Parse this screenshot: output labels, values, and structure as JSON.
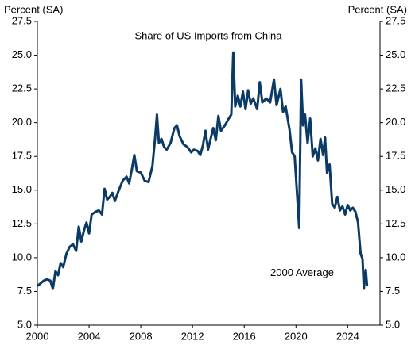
{
  "chart_data": {
    "type": "line",
    "title": "Share of US Imports from China",
    "ylabel": "Percent (SA)",
    "y2label": "Percent (SA)",
    "xlim": [
      2000,
      2026.5
    ],
    "xticks": [
      2000,
      2004,
      2008,
      2012,
      2016,
      2020,
      2024
    ],
    "ylim": [
      5,
      27.5
    ],
    "yticks": [
      {
        "value": 5,
        "label": "5.0"
      },
      7.5,
      {
        "value": 10,
        "label": "10.0"
      },
      12.5,
      {
        "value": 15,
        "label": "15.0"
      },
      17.5,
      {
        "value": 20,
        "label": "20.0"
      },
      22.5,
      {
        "value": 25,
        "label": "25.0"
      },
      27.5
    ],
    "y2lim": [
      5,
      27.5
    ],
    "y2ticks": [
      {
        "value": 5,
        "label": "5.0"
      },
      7.5,
      {
        "value": 10,
        "label": "10.0"
      },
      12.5,
      {
        "value": 15,
        "label": "15.0"
      },
      17.5,
      {
        "value": 20,
        "label": "20.0"
      },
      22.5,
      {
        "value": 25,
        "label": "25.0"
      },
      27.5
    ],
    "reference_line": {
      "value": 8.2,
      "label": "2000 Average",
      "color": "#0b3a66"
    },
    "series": [
      {
        "name": "Share of US Imports from China",
        "color": "#0b3a66",
        "x": [
          2000.0,
          2000.25,
          2000.5,
          2000.75,
          2001.0,
          2001.2,
          2001.4,
          2001.6,
          2001.8,
          2002.0,
          2002.25,
          2002.5,
          2002.75,
          2003.0,
          2003.2,
          2003.4,
          2003.6,
          2003.8,
          2004.0,
          2004.2,
          2004.5,
          2004.75,
          2005.0,
          2005.2,
          2005.4,
          2005.6,
          2005.8,
          2006.0,
          2006.3,
          2006.6,
          2006.9,
          2007.1,
          2007.3,
          2007.5,
          2007.7,
          2008.0,
          2008.3,
          2008.6,
          2008.9,
          2009.1,
          2009.25,
          2009.4,
          2009.6,
          2009.8,
          2010.0,
          2010.3,
          2010.6,
          2010.8,
          2011.0,
          2011.3,
          2011.6,
          2011.9,
          2012.1,
          2012.4,
          2012.6,
          2012.8,
          2013.0,
          2013.2,
          2013.4,
          2013.6,
          2013.8,
          2014.0,
          2014.2,
          2014.5,
          2014.8,
          2015.0,
          2015.15,
          2015.3,
          2015.5,
          2015.7,
          2015.9,
          2016.1,
          2016.3,
          2016.5,
          2016.7,
          2017.0,
          2017.2,
          2017.4,
          2017.7,
          2018.0,
          2018.3,
          2018.5,
          2018.8,
          2019.0,
          2019.2,
          2019.5,
          2019.7,
          2019.9,
          2020.1,
          2020.25,
          2020.4,
          2020.55,
          2020.7,
          2020.9,
          2021.1,
          2021.3,
          2021.5,
          2021.7,
          2021.9,
          2022.1,
          2022.25,
          2022.4,
          2022.6,
          2022.8,
          2023.0,
          2023.2,
          2023.4,
          2023.6,
          2023.8,
          2024.0,
          2024.2,
          2024.4,
          2024.6,
          2024.8,
          2025.0,
          2025.15,
          2025.25,
          2025.4,
          2025.5
        ],
        "values": [
          7.9,
          8.1,
          8.3,
          8.4,
          8.3,
          7.7,
          9.0,
          8.7,
          9.6,
          9.3,
          10.3,
          10.8,
          11.0,
          10.5,
          12.3,
          11.2,
          12.0,
          12.6,
          11.8,
          13.2,
          13.4,
          13.5,
          13.2,
          15.1,
          14.3,
          14.5,
          14.8,
          14.2,
          15.0,
          15.7,
          16.0,
          15.5,
          16.5,
          17.6,
          16.4,
          16.3,
          15.7,
          15.6,
          16.8,
          18.8,
          20.6,
          18.5,
          18.8,
          18.2,
          18.0,
          18.5,
          19.6,
          19.8,
          19.0,
          18.4,
          18.2,
          17.8,
          18.0,
          17.9,
          17.6,
          18.3,
          19.4,
          18.0,
          18.8,
          19.6,
          18.7,
          20.5,
          19.4,
          19.8,
          20.3,
          20.6,
          25.2,
          21.2,
          22.0,
          21.2,
          22.3,
          21.0,
          22.4,
          21.4,
          21.8,
          21.0,
          23.0,
          21.5,
          21.8,
          21.5,
          23.2,
          21.3,
          22.5,
          20.8,
          21.2,
          19.5,
          17.8,
          17.5,
          14.5,
          12.2,
          23.2,
          19.8,
          20.6,
          18.5,
          20.3,
          17.5,
          18.1,
          17.2,
          18.8,
          17.6,
          18.9,
          16.3,
          16.9,
          14.0,
          13.7,
          14.5,
          13.5,
          13.8,
          13.2,
          13.9,
          13.5,
          13.7,
          13.4,
          12.6,
          10.3,
          9.9,
          7.7,
          9.1,
          7.9
        ]
      }
    ]
  }
}
